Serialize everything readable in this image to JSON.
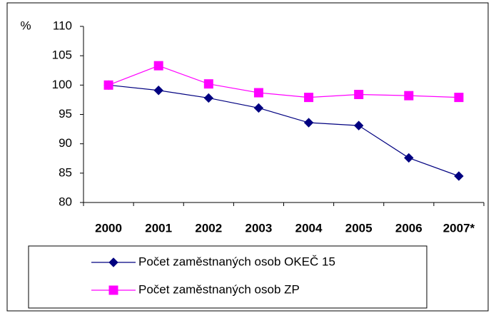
{
  "chart_data": {
    "type": "line",
    "y_label": "%",
    "categories": [
      "2000",
      "2001",
      "2002",
      "2003",
      "2004",
      "2005",
      "2006",
      "2007*"
    ],
    "series": [
      {
        "name": "Počet zaměstnaných osob OKEČ 15",
        "color": "#000080",
        "marker": "diamond",
        "values": [
          100,
          99.1,
          97.8,
          96.1,
          93.6,
          93.1,
          87.6,
          84.5
        ]
      },
      {
        "name": "Počet zaměstnaných osob ZP",
        "color": "#ff00ff",
        "marker": "square",
        "values": [
          100,
          103.3,
          100.2,
          98.7,
          97.9,
          98.4,
          98.2,
          97.9
        ]
      }
    ],
    "ylim": [
      80,
      110
    ],
    "yticks": [
      80,
      85,
      90,
      95,
      100,
      105,
      110
    ],
    "grid": false,
    "legend": "bottom"
  }
}
